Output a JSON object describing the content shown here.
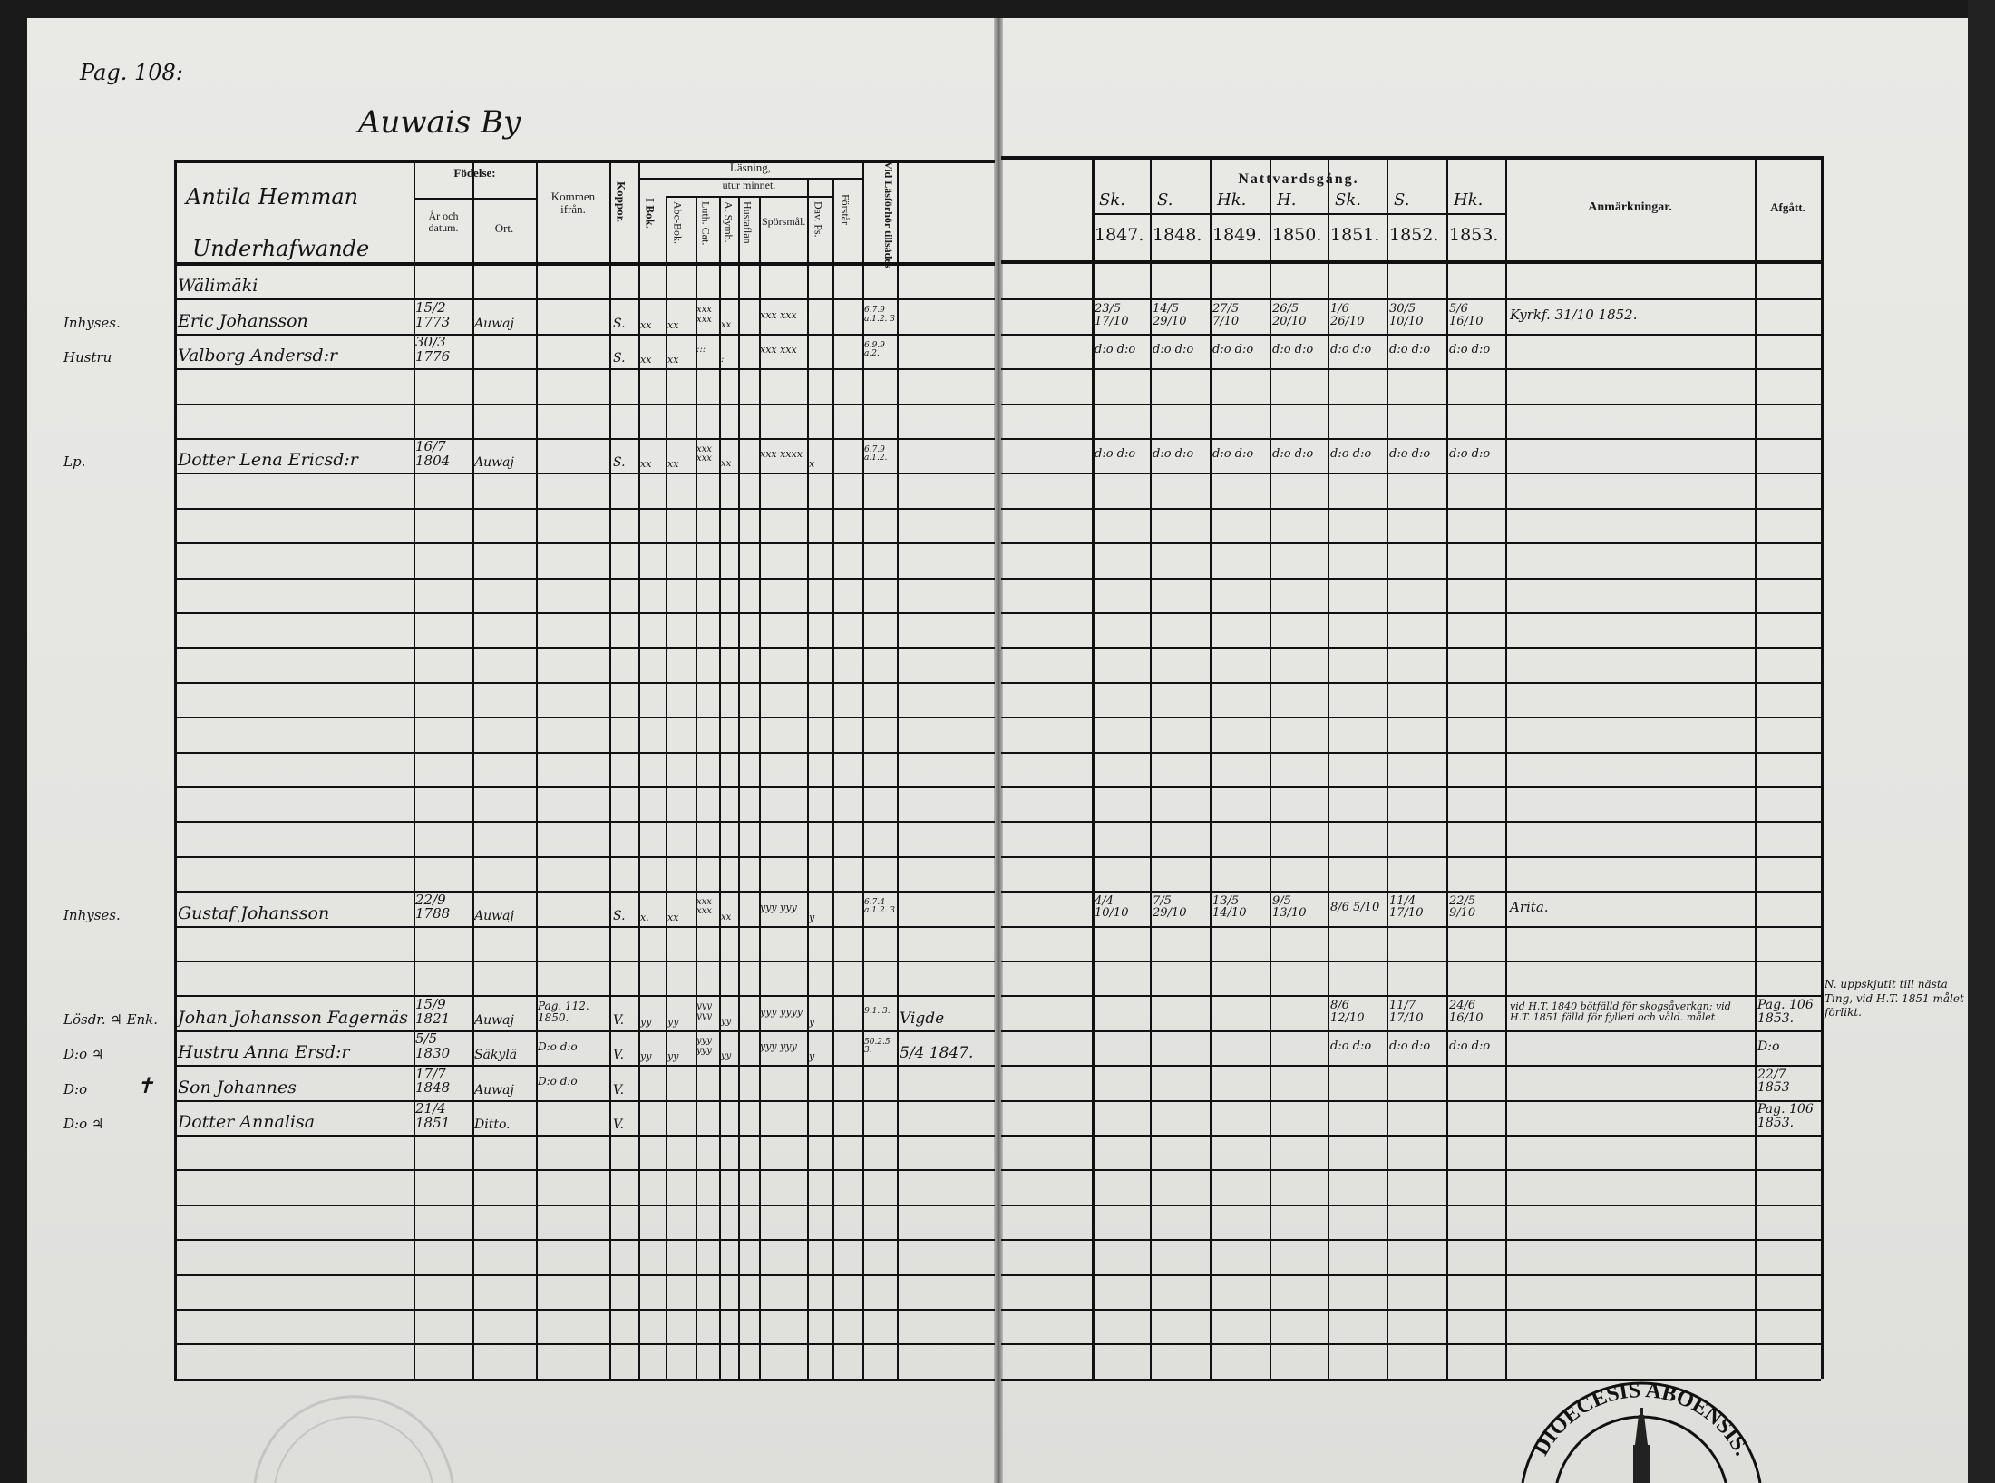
{
  "left_page": {
    "page_ref": "Pag. 108:",
    "village": "Auwais By",
    "farm": "Antila Hemman",
    "sub_heading": "Underhafwande",
    "headers": {
      "fodelse": "Födelse:",
      "ar_och_datum": "År och datum.",
      "ort": "Ort.",
      "kommen_ifran": "Kommen ifrån.",
      "koppor": "Koppor.",
      "lasning": "Läsning,",
      "utur_minnet": "utur minnet.",
      "i_bok": "I Bok.",
      "abc_bok": "Abc-Bok.",
      "luth_cat": "Luth. Cat.",
      "a_symb": "A. Symb.",
      "hustaflan": "Hustaflan",
      "sporsmal": "Spörsmål.",
      "dav_ps": "Dav. Ps.",
      "forstar": "Förstår",
      "vid_lasforhor": "Vid Läsförhör tillsädes"
    },
    "rows": [
      {
        "row": 0,
        "name": "Wälimäki"
      },
      {
        "row": 1,
        "margin": "Inhyses.",
        "name": "Eric Johansson",
        "birth": "15/2 1773",
        "place": "Auwaj",
        "kopor": "S.",
        "i_bok": "xx",
        "abc": "xx",
        "luth": "xxx xxx",
        "symb": "xx",
        "husta": "xxx xxx",
        "lasforhor": "6.7.9 a.1.2. 3"
      },
      {
        "row": 2,
        "margin": "Hustru",
        "name": "Valborg Andersd:r",
        "birth": "30/3 1776",
        "kopor": "S.",
        "i_bok": "xx",
        "abc": "xx",
        "luth": ":::",
        "symb": ":",
        "husta": "xxx xxx",
        "lasforhor": "6.9.9 a.2."
      },
      {
        "row": 5,
        "margin": "Lp.",
        "name": "Dotter Lena Ericsd:r",
        "birth": "16/7 1804",
        "place": "Auwaj",
        "kopor": "S.",
        "i_bok": "xx",
        "abc": "xx",
        "luth": "xxx xxx",
        "symb": "xx",
        "husta": "xxx xxxx",
        "spors": "x",
        "lasforhor": "6.7.9 a.1.2."
      },
      {
        "row": 18,
        "margin": "Inhyses.",
        "name": "Gustaf Johansson",
        "birth": "22/9 1788",
        "place": "Auwaj",
        "kopor": "S.",
        "i_bok": "x.",
        "abc": "xx",
        "luth": "xxx xxx",
        "symb": "xx",
        "husta": "yyy yyy",
        "spors": "y",
        "lasforhor": "6.7.4 a.1.2. 3"
      },
      {
        "row": 21,
        "margin": "Lösdr. ♃ Enk.",
        "name": "Johan Johansson Fagernäs",
        "birth": "15/9 1821",
        "place": "Auwaj",
        "from": "Pag. 112. 1850.",
        "kopor": "V.",
        "i_bok": "yy",
        "abc": "yy",
        "luth": "yyy yyy",
        "symb": "yy",
        "husta": "yyy yyyy",
        "spors": "y",
        "lasforhor": "9.1. 3.",
        "extra": "Vigde"
      },
      {
        "row": 22,
        "margin": "D:o ♃",
        "name": "Hustru Anna Ersd:r",
        "birth": "5/5 1830",
        "place": "Säkylä",
        "from": "D:o d:o",
        "kopor": "V.",
        "i_bok": "yy",
        "abc": "yy",
        "luth": "yyy yyy",
        "symb": "yy",
        "husta": "yyy yyy",
        "spors": "y",
        "lasforhor": "50.2.5 3.",
        "extra": "5/4 1847."
      },
      {
        "row": 23,
        "margin": "D:o",
        "mark": "✝",
        "name": "Son Johannes",
        "birth": "17/7 1848",
        "place": "Auwaj",
        "from": "D:o d:o",
        "kopor": "V."
      },
      {
        "row": 24,
        "margin": "D:o ♃",
        "name": "Dotter Annalisa",
        "birth": "21/4 1851",
        "place": "Ditto.",
        "kopor": "V."
      }
    ],
    "stamp_color": "#555555"
  },
  "right_page": {
    "headers": {
      "nattvardsgang": "Nattvardsgång.",
      "seasons": [
        "Sk.",
        "S.",
        "Hk.",
        "H.",
        "Sk.",
        "S.",
        "Hk."
      ],
      "years": [
        "1847.",
        "1848.",
        "1849.",
        "1850.",
        "1851.",
        "1852.",
        "1853."
      ],
      "anmarkningar": "Anmärkningar.",
      "afgatt": "Afgått."
    },
    "rows": [
      {
        "row": 1,
        "communion": [
          "23/5 17/10",
          "14/5 29/10",
          "27/5 7/10",
          "26/5 20/10",
          "1/6 26/10",
          "30/5 10/10",
          "5/6 16/10"
        ],
        "anm": "Kyrkf. 31/10 1852."
      },
      {
        "row": 2,
        "communion": [
          "d:o d:o",
          "d:o d:o",
          "d:o d:o",
          "d:o d:o",
          "d:o d:o",
          "d:o d:o",
          "d:o d:o"
        ]
      },
      {
        "row": 5,
        "communion": [
          "d:o d:o",
          "d:o d:o",
          "d:o d:o",
          "d:o d:o",
          "d:o d:o",
          "d:o d:o",
          "d:o d:o"
        ]
      },
      {
        "row": 18,
        "communion": [
          "4/4 10/10",
          "7/5 29/10",
          "13/5 14/10",
          "9/5 13/10",
          "8/6 5/10",
          "11/4 17/10",
          "22/5 9/10"
        ],
        "anm": "Arita."
      },
      {
        "row": 21,
        "communion": [
          "",
          "",
          "",
          "",
          "8/6 12/10",
          "11/7 17/10",
          "24/6 16/10"
        ],
        "anm": "vid H.T. 1840 bötfälld för skogsåverkan; vid H.T. 1851 fälld för fylleri och våld. målet",
        "afgatt": "Pag. 106 1853."
      },
      {
        "row": 22,
        "communion": [
          "",
          "",
          "",
          "",
          "d:o d:o",
          "d:o d:o",
          "d:o d:o"
        ],
        "afgatt": "D:o"
      },
      {
        "row": 23,
        "afgatt": "22/7 1853"
      },
      {
        "row": 24,
        "afgatt": "Pag. 106 1853."
      }
    ],
    "margin_note": "N. uppskjutit till nästa Ting, vid H.T. 1851 målet förlikt.",
    "seal_text": "DIOECESIS ABOENSIS."
  }
}
